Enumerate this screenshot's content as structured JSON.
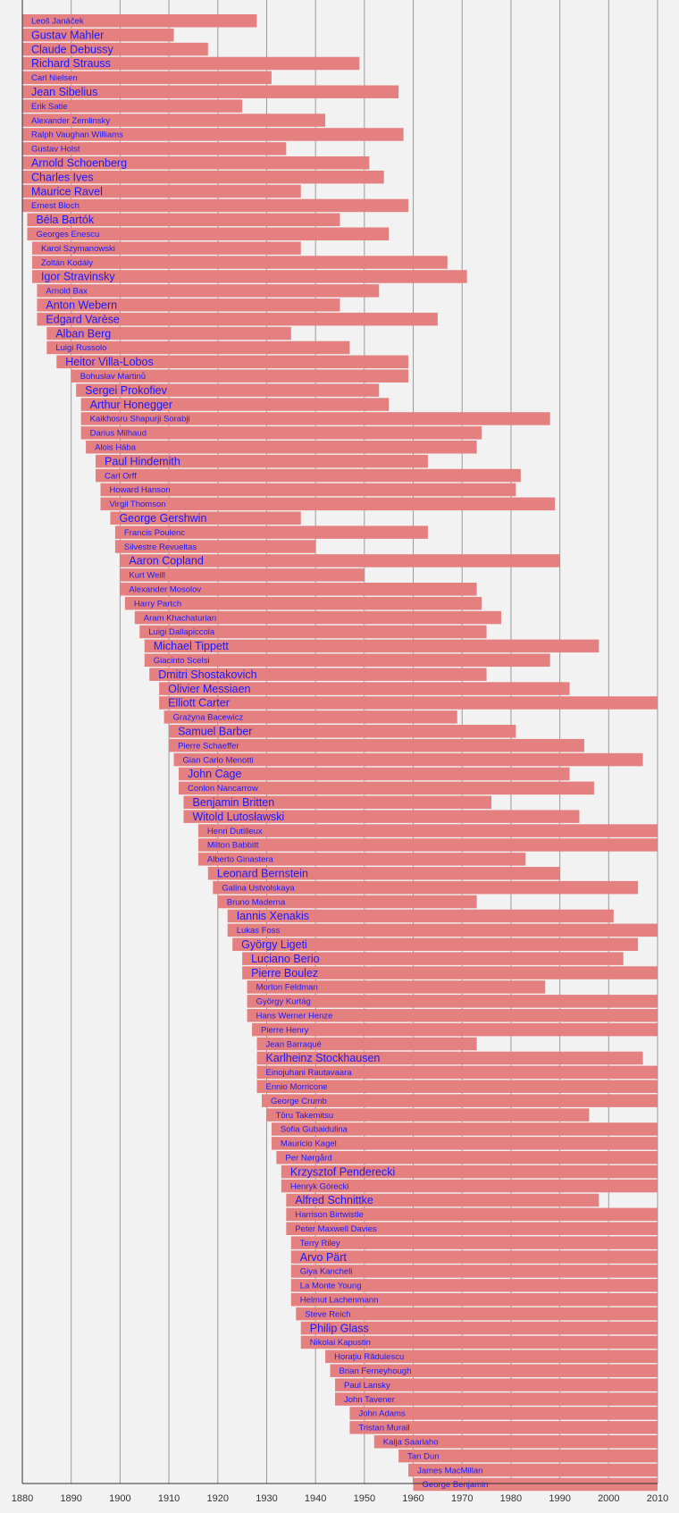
{
  "chart_data": {
    "type": "bar",
    "orientation": "horizontal",
    "title": "",
    "xlabel": "",
    "ylabel": "",
    "xlim": [
      1880,
      2010
    ],
    "xticks": [
      1880,
      1890,
      1900,
      1910,
      1920,
      1930,
      1940,
      1950,
      1960,
      1970,
      1980,
      1990,
      2000,
      2010
    ],
    "grid": "vertical",
    "colors": {
      "bar": "#e58080",
      "label": "#1a1aff",
      "background": "#f2f2f2",
      "grid": "#9a9a9a"
    },
    "bars": [
      {
        "name": "Leoš Janáček",
        "start": 1880,
        "end": 1928,
        "size": "small"
      },
      {
        "name": "Gustav Mahler",
        "start": 1880,
        "end": 1911,
        "size": "large"
      },
      {
        "name": "Claude Debussy",
        "start": 1880,
        "end": 1918,
        "size": "large"
      },
      {
        "name": "Richard Strauss",
        "start": 1880,
        "end": 1949,
        "size": "large"
      },
      {
        "name": "Carl Nielsen",
        "start": 1880,
        "end": 1931,
        "size": "small"
      },
      {
        "name": "Jean Sibelius",
        "start": 1880,
        "end": 1957,
        "size": "large"
      },
      {
        "name": "Erik Satie",
        "start": 1880,
        "end": 1925,
        "size": "small"
      },
      {
        "name": "Alexander Zemlinsky",
        "start": 1880,
        "end": 1942,
        "size": "small"
      },
      {
        "name": "Ralph Vaughan Williams",
        "start": 1880,
        "end": 1958,
        "size": "small"
      },
      {
        "name": "Gustav Holst",
        "start": 1880,
        "end": 1934,
        "size": "small"
      },
      {
        "name": "Arnold Schoenberg",
        "start": 1880,
        "end": 1951,
        "size": "large"
      },
      {
        "name": "Charles Ives",
        "start": 1880,
        "end": 1954,
        "size": "large"
      },
      {
        "name": "Maurice Ravel",
        "start": 1880,
        "end": 1937,
        "size": "large"
      },
      {
        "name": "Ernest Bloch",
        "start": 1880,
        "end": 1959,
        "size": "small"
      },
      {
        "name": "Béla Bartók",
        "start": 1881,
        "end": 1945,
        "size": "large"
      },
      {
        "name": "Georges Enescu",
        "start": 1881,
        "end": 1955,
        "size": "small"
      },
      {
        "name": "Karol Szymanowski",
        "start": 1882,
        "end": 1937,
        "size": "small"
      },
      {
        "name": "Zoltán Kodály",
        "start": 1882,
        "end": 1967,
        "size": "small"
      },
      {
        "name": "Igor Stravinsky",
        "start": 1882,
        "end": 1971,
        "size": "large"
      },
      {
        "name": "Arnold Bax",
        "start": 1883,
        "end": 1953,
        "size": "small"
      },
      {
        "name": "Anton Webern",
        "start": 1883,
        "end": 1945,
        "size": "large"
      },
      {
        "name": "Edgard Varèse",
        "start": 1883,
        "end": 1965,
        "size": "large"
      },
      {
        "name": "Alban Berg",
        "start": 1885,
        "end": 1935,
        "size": "large"
      },
      {
        "name": "Luigi Russolo",
        "start": 1885,
        "end": 1947,
        "size": "small"
      },
      {
        "name": "Heitor Villa-Lobos",
        "start": 1887,
        "end": 1959,
        "size": "large"
      },
      {
        "name": "Bohuslav Martinů",
        "start": 1890,
        "end": 1959,
        "size": "small"
      },
      {
        "name": "Sergei Prokofiev",
        "start": 1891,
        "end": 1953,
        "size": "large"
      },
      {
        "name": "Arthur Honegger",
        "start": 1892,
        "end": 1955,
        "size": "large"
      },
      {
        "name": "Kaikhosru Shapurji Sorabji",
        "start": 1892,
        "end": 1988,
        "size": "small"
      },
      {
        "name": "Darius Milhaud",
        "start": 1892,
        "end": 1974,
        "size": "small"
      },
      {
        "name": "Alois Hába",
        "start": 1893,
        "end": 1973,
        "size": "small"
      },
      {
        "name": "Paul Hindemith",
        "start": 1895,
        "end": 1963,
        "size": "large"
      },
      {
        "name": "Carl Orff",
        "start": 1895,
        "end": 1982,
        "size": "small"
      },
      {
        "name": "Howard Hanson",
        "start": 1896,
        "end": 1981,
        "size": "small"
      },
      {
        "name": "Virgil Thomson",
        "start": 1896,
        "end": 1989,
        "size": "small"
      },
      {
        "name": "George Gershwin",
        "start": 1898,
        "end": 1937,
        "size": "large"
      },
      {
        "name": "Francis Poulenc",
        "start": 1899,
        "end": 1963,
        "size": "small"
      },
      {
        "name": "Silvestre Revueltas",
        "start": 1899,
        "end": 1940,
        "size": "small"
      },
      {
        "name": "Aaron Copland",
        "start": 1900,
        "end": 1990,
        "size": "large"
      },
      {
        "name": "Kurt Weill",
        "start": 1900,
        "end": 1950,
        "size": "small"
      },
      {
        "name": "Alexander Mosolov",
        "start": 1900,
        "end": 1973,
        "size": "small"
      },
      {
        "name": "Harry Partch",
        "start": 1901,
        "end": 1974,
        "size": "small"
      },
      {
        "name": "Aram Khachaturian",
        "start": 1903,
        "end": 1978,
        "size": "small"
      },
      {
        "name": "Luigi Dallapiccola",
        "start": 1904,
        "end": 1975,
        "size": "small"
      },
      {
        "name": "Michael Tippett",
        "start": 1905,
        "end": 1998,
        "size": "large"
      },
      {
        "name": "Giacinto Scelsi",
        "start": 1905,
        "end": 1988,
        "size": "small"
      },
      {
        "name": "Dmitri Shostakovich",
        "start": 1906,
        "end": 1975,
        "size": "large"
      },
      {
        "name": "Olivier Messiaen",
        "start": 1908,
        "end": 1992,
        "size": "large"
      },
      {
        "name": "Elliott Carter",
        "start": 1908,
        "end": 2010,
        "size": "large"
      },
      {
        "name": "Grażyna Bacewicz",
        "start": 1909,
        "end": 1969,
        "size": "small"
      },
      {
        "name": "Samuel Barber",
        "start": 1910,
        "end": 1981,
        "size": "large"
      },
      {
        "name": "Pierre Schaeffer",
        "start": 1910,
        "end": 1995,
        "size": "small"
      },
      {
        "name": "Gian Carlo Menotti",
        "start": 1911,
        "end": 2007,
        "size": "small"
      },
      {
        "name": "John Cage",
        "start": 1912,
        "end": 1992,
        "size": "large"
      },
      {
        "name": "Conlon Nancarrow",
        "start": 1912,
        "end": 1997,
        "size": "small"
      },
      {
        "name": "Benjamin Britten",
        "start": 1913,
        "end": 1976,
        "size": "large"
      },
      {
        "name": "Witold Lutosławski",
        "start": 1913,
        "end": 1994,
        "size": "large"
      },
      {
        "name": "Henri Dutilleux",
        "start": 1916,
        "end": 2010,
        "size": "small"
      },
      {
        "name": "Milton Babbitt",
        "start": 1916,
        "end": 2010,
        "size": "small"
      },
      {
        "name": "Alberto Ginastera",
        "start": 1916,
        "end": 1983,
        "size": "small"
      },
      {
        "name": "Leonard Bernstein",
        "start": 1918,
        "end": 1990,
        "size": "large"
      },
      {
        "name": "Galina Ustvolskaya",
        "start": 1919,
        "end": 2006,
        "size": "small"
      },
      {
        "name": "Bruno Maderna",
        "start": 1920,
        "end": 1973,
        "size": "small"
      },
      {
        "name": "Iannis Xenakis",
        "start": 1922,
        "end": 2001,
        "size": "large"
      },
      {
        "name": "Lukas Foss",
        "start": 1922,
        "end": 2010,
        "size": "small"
      },
      {
        "name": "György Ligeti",
        "start": 1923,
        "end": 2006,
        "size": "large"
      },
      {
        "name": "Luciano Berio",
        "start": 1925,
        "end": 2003,
        "size": "large"
      },
      {
        "name": "Pierre Boulez",
        "start": 1925,
        "end": 2010,
        "size": "large"
      },
      {
        "name": "Morton Feldman",
        "start": 1926,
        "end": 1987,
        "size": "small"
      },
      {
        "name": "György Kurtág",
        "start": 1926,
        "end": 2010,
        "size": "small"
      },
      {
        "name": "Hans Werner Henze",
        "start": 1926,
        "end": 2010,
        "size": "small"
      },
      {
        "name": "Pierre Henry",
        "start": 1927,
        "end": 2010,
        "size": "small"
      },
      {
        "name": "Jean Barraqué",
        "start": 1928,
        "end": 1973,
        "size": "small"
      },
      {
        "name": "Karlheinz Stockhausen",
        "start": 1928,
        "end": 2007,
        "size": "large"
      },
      {
        "name": "Einojuhani Rautavaara",
        "start": 1928,
        "end": 2010,
        "size": "small"
      },
      {
        "name": "Ennio Morricone",
        "start": 1928,
        "end": 2010,
        "size": "small"
      },
      {
        "name": "George Crumb",
        "start": 1929,
        "end": 2010,
        "size": "small"
      },
      {
        "name": "Tōru Takemitsu",
        "start": 1930,
        "end": 1996,
        "size": "small"
      },
      {
        "name": "Sofia Gubaidulina",
        "start": 1931,
        "end": 2010,
        "size": "small"
      },
      {
        "name": "Mauricio Kagel",
        "start": 1931,
        "end": 2010,
        "size": "small"
      },
      {
        "name": "Per Nørgård",
        "start": 1932,
        "end": 2010,
        "size": "small"
      },
      {
        "name": "Krzysztof Penderecki",
        "start": 1933,
        "end": 2010,
        "size": "large"
      },
      {
        "name": "Henryk Górecki",
        "start": 1933,
        "end": 2010,
        "size": "small"
      },
      {
        "name": "Alfred Schnittke",
        "start": 1934,
        "end": 1998,
        "size": "large"
      },
      {
        "name": "Harrison Birtwistle",
        "start": 1934,
        "end": 2010,
        "size": "small"
      },
      {
        "name": "Peter Maxwell Davies",
        "start": 1934,
        "end": 2010,
        "size": "small"
      },
      {
        "name": "Terry Riley",
        "start": 1935,
        "end": 2010,
        "size": "small"
      },
      {
        "name": "Arvo Pärt",
        "start": 1935,
        "end": 2010,
        "size": "large"
      },
      {
        "name": "Giya Kancheli",
        "start": 1935,
        "end": 2010,
        "size": "small"
      },
      {
        "name": "La Monte Young",
        "start": 1935,
        "end": 2010,
        "size": "small"
      },
      {
        "name": "Helmut Lachenmann",
        "start": 1935,
        "end": 2010,
        "size": "small"
      },
      {
        "name": "Steve Reich",
        "start": 1936,
        "end": 2010,
        "size": "small"
      },
      {
        "name": "Philip Glass",
        "start": 1937,
        "end": 2010,
        "size": "large"
      },
      {
        "name": "Nikolai Kapustin",
        "start": 1937,
        "end": 2010,
        "size": "small"
      },
      {
        "name": "Horaţiu Rădulescu",
        "start": 1942,
        "end": 2010,
        "size": "small"
      },
      {
        "name": "Brian Ferneyhough",
        "start": 1943,
        "end": 2010,
        "size": "small"
      },
      {
        "name": "Paul Lansky",
        "start": 1944,
        "end": 2010,
        "size": "small"
      },
      {
        "name": "John Tavener",
        "start": 1944,
        "end": 2010,
        "size": "small"
      },
      {
        "name": "John Adams",
        "start": 1947,
        "end": 2010,
        "size": "small"
      },
      {
        "name": "Tristan Murail",
        "start": 1947,
        "end": 2010,
        "size": "small"
      },
      {
        "name": "Kaija Saariaho",
        "start": 1952,
        "end": 2010,
        "size": "small"
      },
      {
        "name": "Tan Dun",
        "start": 1957,
        "end": 2010,
        "size": "small"
      },
      {
        "name": "James MacMillan",
        "start": 1959,
        "end": 2010,
        "size": "small"
      },
      {
        "name": "George Benjamin",
        "start": 1960,
        "end": 2010,
        "size": "small"
      }
    ]
  }
}
